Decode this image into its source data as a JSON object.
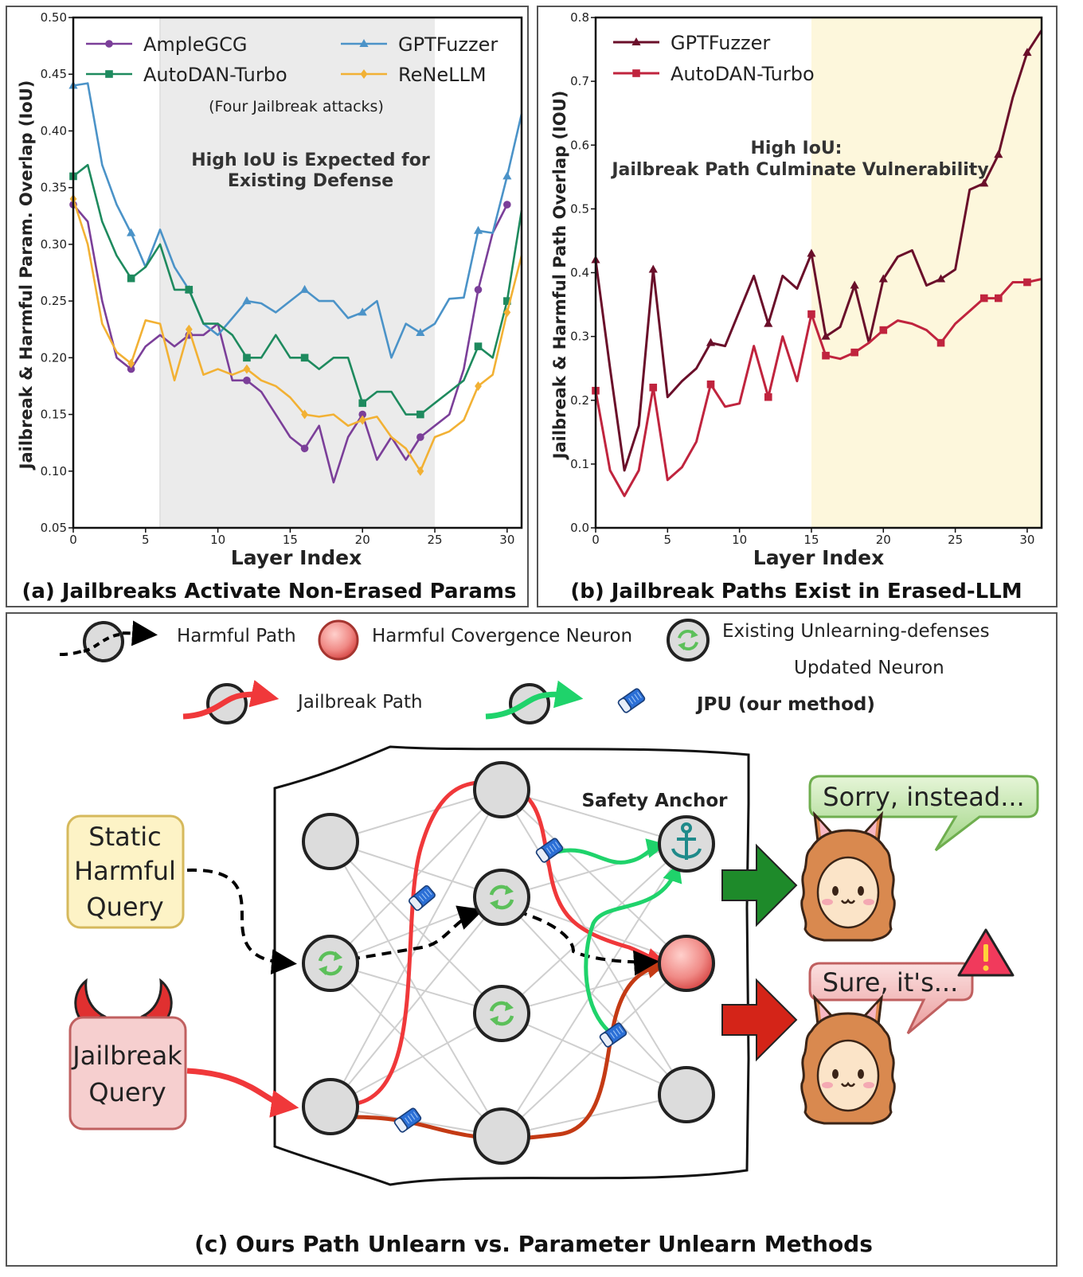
{
  "panel_a": {
    "caption": "(a) Jailbreaks Activate Non-Erased Params",
    "annotation": "(Four Jailbreak attacks)",
    "region_text": [
      "High IoU is Expected for",
      "Existing Defense"
    ]
  },
  "panel_b": {
    "caption": "(b) Jailbreak Paths Exist in Erased-LLM",
    "region_text": [
      "High IoU:",
      "Jailbreak Path Culminate Vulnerability"
    ]
  },
  "panel_c": {
    "caption": "(c) Ours Path Unlearn vs. Parameter Unlearn Methods",
    "legend": {
      "harmful_path": "Harmful Path",
      "convergence_neuron": "Harmful Covergence Neuron",
      "existing_defense_1": "Existing Unlearning-defenses",
      "existing_defense_2": "Updated Neuron",
      "jailbreak_path": "Jailbreak Path",
      "jpu": "JPU (our method)"
    },
    "static_query": [
      "Static",
      "Harmful",
      "Query"
    ],
    "jailbreak_query": [
      "Jailbreak",
      "Query"
    ],
    "safety_anchor": "Safety Anchor",
    "reply_safe": "Sorry, instead...",
    "reply_unsafe": "Sure, it's..."
  },
  "colors": {
    "ample": "#7b3f99",
    "gptfuzzer_a": "#4b93c8",
    "autodan_a": "#1e8a5e",
    "renellm": "#f2b134",
    "gptfuzzer_b": "#6a0f2a",
    "autodan_b": "#c0243e",
    "region_a": "#ebebeb",
    "region_b": "#fdf7dc"
  },
  "chart_data": [
    {
      "type": "line",
      "title": "(a) Jailbreaks Activate Non-Erased Params",
      "xlabel": "Layer Index",
      "ylabel": "Jailbreak & Harmful Param. Overlap (IoU)",
      "xlim": [
        0,
        31
      ],
      "ylim": [
        0.05,
        0.5
      ],
      "xticks": [
        0,
        5,
        10,
        15,
        20,
        25,
        30
      ],
      "yticks": [
        0.05,
        0.1,
        0.15,
        0.2,
        0.25,
        0.3,
        0.35,
        0.4,
        0.45,
        0.5
      ],
      "ytick_labels": [
        "0.05",
        "0.10",
        "0.15",
        "0.20",
        "0.25",
        "0.30",
        "0.35",
        "0.40",
        "0.45",
        "0.50"
      ],
      "highlight_region": [
        6,
        25
      ],
      "legend_position": "top",
      "series": [
        {
          "name": "AmpleGCG",
          "marker": "circle",
          "color_key": "ample",
          "values": [
            0.335,
            0.32,
            0.25,
            0.2,
            0.19,
            0.21,
            0.22,
            0.21,
            0.22,
            0.22,
            0.23,
            0.18,
            0.18,
            0.17,
            0.15,
            0.13,
            0.12,
            0.14,
            0.09,
            0.13,
            0.15,
            0.11,
            0.13,
            0.11,
            0.13,
            0.14,
            0.15,
            0.19,
            0.26,
            0.31,
            0.335
          ]
        },
        {
          "name": "GPTFuzzer",
          "marker": "triangle",
          "color_key": "gptfuzzer_a",
          "values": [
            0.44,
            0.442,
            0.37,
            0.335,
            0.31,
            0.28,
            0.313,
            0.28,
            0.26,
            0.23,
            0.22,
            0.235,
            0.25,
            0.248,
            0.24,
            0.25,
            0.26,
            0.25,
            0.25,
            0.235,
            0.24,
            0.25,
            0.2,
            0.23,
            0.222,
            0.23,
            0.252,
            0.253,
            0.312,
            0.31,
            0.36,
            0.415
          ]
        },
        {
          "name": "AutoDAN-Turbo",
          "marker": "square",
          "color_key": "autodan_a",
          "values": [
            0.36,
            0.37,
            0.32,
            0.29,
            0.27,
            0.28,
            0.3,
            0.26,
            0.26,
            0.23,
            0.23,
            0.22,
            0.2,
            0.2,
            0.22,
            0.2,
            0.2,
            0.19,
            0.2,
            0.2,
            0.16,
            0.17,
            0.17,
            0.15,
            0.15,
            0.16,
            0.17,
            0.18,
            0.21,
            0.2,
            0.25,
            0.33
          ]
        },
        {
          "name": "ReNeLLM",
          "marker": "diamond",
          "color_key": "renellm",
          "values": [
            0.34,
            0.3,
            0.23,
            0.205,
            0.195,
            0.233,
            0.23,
            0.18,
            0.225,
            0.185,
            0.19,
            0.185,
            0.19,
            0.18,
            0.175,
            0.165,
            0.15,
            0.148,
            0.15,
            0.14,
            0.145,
            0.148,
            0.13,
            0.12,
            0.1,
            0.13,
            0.135,
            0.145,
            0.175,
            0.185,
            0.24,
            0.29
          ]
        }
      ]
    },
    {
      "type": "line",
      "title": "(b) Jailbreak Paths Exist in Erased-LLM",
      "xlabel": "Layer Index",
      "ylabel": "Jailbreak & Harmful Path Overlap (IOU)",
      "xlim": [
        0,
        31
      ],
      "ylim": [
        0.0,
        0.8
      ],
      "xticks": [
        0,
        5,
        10,
        15,
        20,
        25,
        30
      ],
      "yticks": [
        0.0,
        0.1,
        0.2,
        0.3,
        0.4,
        0.5,
        0.6,
        0.7,
        0.8
      ],
      "ytick_labels": [
        "0.0",
        "0.1",
        "0.2",
        "0.3",
        "0.4",
        "0.5",
        "0.6",
        "0.7",
        "0.8"
      ],
      "highlight_region": [
        15,
        31
      ],
      "legend_position": "top-left",
      "series": [
        {
          "name": "GPTFuzzer",
          "marker": "triangle",
          "color_key": "gptfuzzer_b",
          "values": [
            0.42,
            0.25,
            0.09,
            0.16,
            0.405,
            0.205,
            0.23,
            0.25,
            0.29,
            0.285,
            0.34,
            0.395,
            0.32,
            0.395,
            0.375,
            0.43,
            0.3,
            0.315,
            0.38,
            0.29,
            0.39,
            0.425,
            0.435,
            0.38,
            0.39,
            0.405,
            0.53,
            0.54,
            0.585,
            0.675,
            0.745,
            0.78
          ]
        },
        {
          "name": "AutoDAN-Turbo",
          "marker": "square",
          "color_key": "autodan_b",
          "values": [
            0.215,
            0.09,
            0.05,
            0.09,
            0.22,
            0.075,
            0.095,
            0.135,
            0.225,
            0.19,
            0.195,
            0.285,
            0.205,
            0.3,
            0.23,
            0.335,
            0.27,
            0.265,
            0.275,
            0.29,
            0.31,
            0.325,
            0.32,
            0.31,
            0.29,
            0.32,
            0.34,
            0.36,
            0.36,
            0.385,
            0.385,
            0.39
          ]
        }
      ]
    }
  ]
}
